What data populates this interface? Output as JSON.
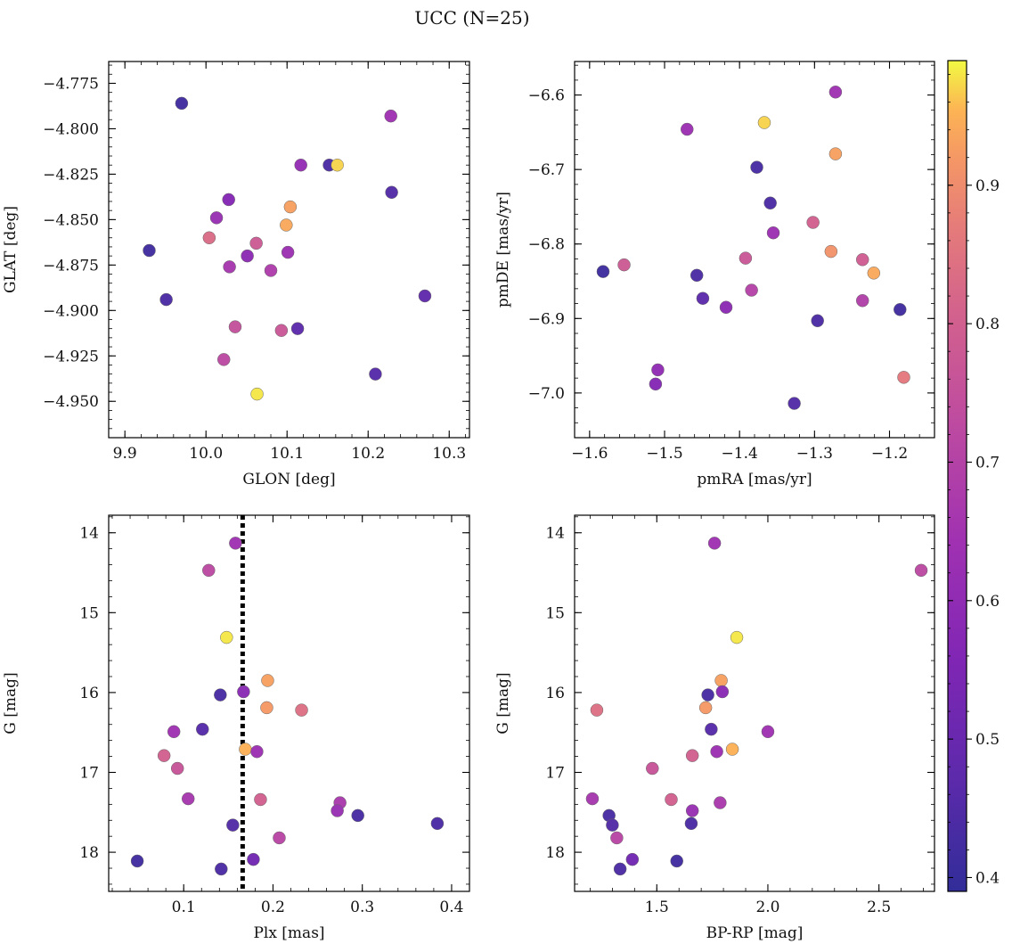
{
  "chart_data": {
    "title": "UCC (N=25)",
    "colorbar": {
      "range": [
        0.39,
        0.99
      ],
      "ticks": [
        0.4,
        0.5,
        0.6,
        0.7,
        0.8,
        0.9
      ],
      "tick_labels": [
        "0.4",
        "0.5",
        "0.6",
        "0.7",
        "0.8",
        "0.9"
      ],
      "colormap": "plasma"
    },
    "panels": [
      {
        "id": "glon-glat",
        "type": "scatter",
        "xlabel": "GLON [deg]",
        "ylabel": "GLAT [deg]",
        "xlim": [
          9.88,
          10.325
        ],
        "ylim": [
          -4.97,
          -4.763
        ],
        "y_inverted": false,
        "xticks": [
          9.9,
          10.0,
          10.1,
          10.2,
          10.3
        ],
        "xtick_labels": [
          "9.9",
          "10.0",
          "10.1",
          "10.2",
          "10.3"
        ],
        "yticks": [
          -4.775,
          -4.8,
          -4.825,
          -4.85,
          -4.875,
          -4.9,
          -4.925,
          -4.95
        ],
        "ytick_labels": [
          "−4.775",
          "−4.800",
          "−4.825",
          "−4.850",
          "−4.875",
          "−4.900",
          "−4.925",
          "−4.950"
        ],
        "points": [
          {
            "x": 9.97,
            "y": -4.786,
            "p": 0.42
          },
          {
            "x": 10.228,
            "y": -4.793,
            "p": 0.64
          },
          {
            "x": 10.117,
            "y": -4.82,
            "p": 0.61
          },
          {
            "x": 10.152,
            "y": -4.82,
            "p": 0.44
          },
          {
            "x": 10.162,
            "y": -4.82,
            "p": 0.97
          },
          {
            "x": 10.229,
            "y": -4.835,
            "p": 0.45
          },
          {
            "x": 10.028,
            "y": -4.839,
            "p": 0.57
          },
          {
            "x": 10.104,
            "y": -4.843,
            "p": 0.93
          },
          {
            "x": 10.013,
            "y": -4.849,
            "p": 0.62
          },
          {
            "x": 10.099,
            "y": -4.853,
            "p": 0.94
          },
          {
            "x": 10.004,
            "y": -4.86,
            "p": 0.83
          },
          {
            "x": 10.062,
            "y": -4.863,
            "p": 0.78
          },
          {
            "x": 9.93,
            "y": -4.867,
            "p": 0.42
          },
          {
            "x": 10.101,
            "y": -4.868,
            "p": 0.63
          },
          {
            "x": 10.051,
            "y": -4.87,
            "p": 0.59
          },
          {
            "x": 10.029,
            "y": -4.876,
            "p": 0.66
          },
          {
            "x": 10.08,
            "y": -4.878,
            "p": 0.68
          },
          {
            "x": 10.27,
            "y": -4.892,
            "p": 0.48
          },
          {
            "x": 9.951,
            "y": -4.894,
            "p": 0.44
          },
          {
            "x": 10.036,
            "y": -4.909,
            "p": 0.75
          },
          {
            "x": 10.113,
            "y": -4.91,
            "p": 0.47
          },
          {
            "x": 10.093,
            "y": -4.911,
            "p": 0.77
          },
          {
            "x": 10.022,
            "y": -4.927,
            "p": 0.72
          },
          {
            "x": 10.209,
            "y": -4.935,
            "p": 0.46
          },
          {
            "x": 10.063,
            "y": -4.946,
            "p": 0.98
          }
        ]
      },
      {
        "id": "pmra-pmde",
        "type": "scatter",
        "xlabel": "pmRA [mas/yr]",
        "ylabel": "pmDE [mas/yr]",
        "xlim": [
          -1.62,
          -1.14
        ],
        "ylim": [
          -7.06,
          -6.555
        ],
        "y_inverted": false,
        "xticks": [
          -1.6,
          -1.5,
          -1.4,
          -1.3,
          -1.2
        ],
        "xtick_labels": [
          "−1.6",
          "−1.5",
          "−1.4",
          "−1.3",
          "−1.2"
        ],
        "yticks": [
          -6.6,
          -6.7,
          -6.8,
          -6.9,
          -7.0
        ],
        "ytick_labels": [
          "−6.6",
          "−6.7",
          "−6.8",
          "−6.9",
          "−7.0"
        ],
        "points": [
          {
            "x": -1.272,
            "y": -6.596,
            "p": 0.64
          },
          {
            "x": -1.367,
            "y": -6.637,
            "p": 0.97
          },
          {
            "x": -1.47,
            "y": -6.646,
            "p": 0.63
          },
          {
            "x": -1.272,
            "y": -6.679,
            "p": 0.93
          },
          {
            "x": -1.377,
            "y": -6.697,
            "p": 0.43
          },
          {
            "x": -1.359,
            "y": -6.745,
            "p": 0.44
          },
          {
            "x": -1.302,
            "y": -6.771,
            "p": 0.8
          },
          {
            "x": -1.355,
            "y": -6.785,
            "p": 0.63
          },
          {
            "x": -1.278,
            "y": -6.81,
            "p": 0.91
          },
          {
            "x": -1.392,
            "y": -6.819,
            "p": 0.77
          },
          {
            "x": -1.236,
            "y": -6.821,
            "p": 0.79
          },
          {
            "x": -1.554,
            "y": -6.828,
            "p": 0.78
          },
          {
            "x": -1.582,
            "y": -6.837,
            "p": 0.41
          },
          {
            "x": -1.221,
            "y": -6.839,
            "p": 0.94
          },
          {
            "x": -1.457,
            "y": -6.842,
            "p": 0.44
          },
          {
            "x": -1.384,
            "y": -6.862,
            "p": 0.7
          },
          {
            "x": -1.449,
            "y": -6.873,
            "p": 0.47
          },
          {
            "x": -1.236,
            "y": -6.876,
            "p": 0.69
          },
          {
            "x": -1.418,
            "y": -6.885,
            "p": 0.59
          },
          {
            "x": -1.186,
            "y": -6.888,
            "p": 0.42
          },
          {
            "x": -1.296,
            "y": -6.903,
            "p": 0.44
          },
          {
            "x": -1.509,
            "y": -6.969,
            "p": 0.6
          },
          {
            "x": -1.181,
            "y": -6.979,
            "p": 0.86
          },
          {
            "x": -1.512,
            "y": -6.988,
            "p": 0.57
          },
          {
            "x": -1.327,
            "y": -7.014,
            "p": 0.45
          }
        ]
      },
      {
        "id": "plx-g",
        "type": "scatter",
        "xlabel": "Plx [mas]",
        "ylabel": "G [mag]",
        "xlim": [
          0.016,
          0.42
        ],
        "ylim": [
          13.78,
          18.49
        ],
        "y_inverted": true,
        "xticks": [
          0.1,
          0.2,
          0.3,
          0.4
        ],
        "xtick_labels": [
          "0.1",
          "0.2",
          "0.3",
          "0.4"
        ],
        "yticks": [
          14,
          15,
          16,
          17,
          18
        ],
        "ytick_labels": [
          "14",
          "15",
          "16",
          "17",
          "18"
        ],
        "vline": {
          "x": 0.166,
          "style": "dotted"
        },
        "points": [
          {
            "x": 0.158,
            "y": 14.13,
            "p": 0.64
          },
          {
            "x": 0.128,
            "y": 14.47,
            "p": 0.72
          },
          {
            "x": 0.148,
            "y": 15.31,
            "p": 0.98
          },
          {
            "x": 0.194,
            "y": 15.85,
            "p": 0.93
          },
          {
            "x": 0.167,
            "y": 15.99,
            "p": 0.58
          },
          {
            "x": 0.141,
            "y": 16.03,
            "p": 0.43
          },
          {
            "x": 0.193,
            "y": 16.19,
            "p": 0.92
          },
          {
            "x": 0.232,
            "y": 16.22,
            "p": 0.84
          },
          {
            "x": 0.121,
            "y": 16.46,
            "p": 0.46
          },
          {
            "x": 0.089,
            "y": 16.49,
            "p": 0.64
          },
          {
            "x": 0.169,
            "y": 16.71,
            "p": 0.95
          },
          {
            "x": 0.182,
            "y": 16.74,
            "p": 0.63
          },
          {
            "x": 0.078,
            "y": 16.79,
            "p": 0.8
          },
          {
            "x": 0.093,
            "y": 16.95,
            "p": 0.76
          },
          {
            "x": 0.105,
            "y": 17.33,
            "p": 0.66
          },
          {
            "x": 0.186,
            "y": 17.34,
            "p": 0.8
          },
          {
            "x": 0.275,
            "y": 17.38,
            "p": 0.67
          },
          {
            "x": 0.272,
            "y": 17.48,
            "p": 0.62
          },
          {
            "x": 0.295,
            "y": 17.54,
            "p": 0.43
          },
          {
            "x": 0.384,
            "y": 17.64,
            "p": 0.44
          },
          {
            "x": 0.155,
            "y": 17.66,
            "p": 0.45
          },
          {
            "x": 0.207,
            "y": 17.82,
            "p": 0.71
          },
          {
            "x": 0.048,
            "y": 18.11,
            "p": 0.42
          },
          {
            "x": 0.178,
            "y": 18.09,
            "p": 0.52
          },
          {
            "x": 0.142,
            "y": 18.21,
            "p": 0.44
          }
        ]
      },
      {
        "id": "bprp-g",
        "type": "scatter",
        "xlabel": "BP-RP [mag]",
        "ylabel": "G [mag]",
        "xlim": [
          1.13,
          2.75
        ],
        "ylim": [
          13.78,
          18.49
        ],
        "y_inverted": true,
        "xticks": [
          1.5,
          2.0,
          2.5
        ],
        "xtick_labels": [
          "1.5",
          "2.0",
          "2.5"
        ],
        "yticks": [
          14,
          15,
          16,
          17,
          18
        ],
        "ytick_labels": [
          "14",
          "15",
          "16",
          "17",
          "18"
        ],
        "points": [
          {
            "x": 1.76,
            "y": 14.13,
            "p": 0.64
          },
          {
            "x": 2.69,
            "y": 14.47,
            "p": 0.72
          },
          {
            "x": 1.86,
            "y": 15.31,
            "p": 0.98
          },
          {
            "x": 1.79,
            "y": 15.85,
            "p": 0.93
          },
          {
            "x": 1.795,
            "y": 15.99,
            "p": 0.58
          },
          {
            "x": 1.73,
            "y": 16.03,
            "p": 0.43
          },
          {
            "x": 1.72,
            "y": 16.19,
            "p": 0.92
          },
          {
            "x": 1.23,
            "y": 16.22,
            "p": 0.84
          },
          {
            "x": 1.745,
            "y": 16.46,
            "p": 0.46
          },
          {
            "x": 2.0,
            "y": 16.49,
            "p": 0.64
          },
          {
            "x": 1.84,
            "y": 16.71,
            "p": 0.95
          },
          {
            "x": 1.77,
            "y": 16.74,
            "p": 0.63
          },
          {
            "x": 1.66,
            "y": 16.79,
            "p": 0.8
          },
          {
            "x": 1.48,
            "y": 16.95,
            "p": 0.76
          },
          {
            "x": 1.21,
            "y": 17.33,
            "p": 0.66
          },
          {
            "x": 1.565,
            "y": 17.34,
            "p": 0.8
          },
          {
            "x": 1.785,
            "y": 17.38,
            "p": 0.67
          },
          {
            "x": 1.66,
            "y": 17.48,
            "p": 0.62
          },
          {
            "x": 1.285,
            "y": 17.54,
            "p": 0.43
          },
          {
            "x": 1.655,
            "y": 17.64,
            "p": 0.44
          },
          {
            "x": 1.3,
            "y": 17.66,
            "p": 0.45
          },
          {
            "x": 1.32,
            "y": 17.82,
            "p": 0.71
          },
          {
            "x": 1.59,
            "y": 18.11,
            "p": 0.42
          },
          {
            "x": 1.39,
            "y": 18.09,
            "p": 0.52
          },
          {
            "x": 1.335,
            "y": 18.21,
            "p": 0.44
          }
        ]
      }
    ]
  }
}
